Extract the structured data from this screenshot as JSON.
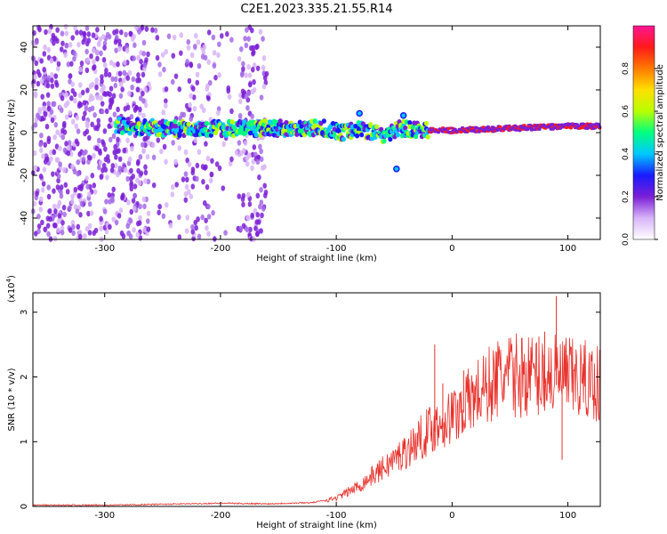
{
  "figure": {
    "title": "C2E1.2023.335.21.55.R14"
  },
  "chart_data": [
    {
      "type": "heatmap",
      "xlabel": "Height of straight line (km)",
      "ylabel": "Frequency (Hz)",
      "xlim": [
        -362,
        128
      ],
      "ylim": [
        -50,
        50
      ],
      "xticks": [
        -300,
        -200,
        -100,
        0,
        100
      ],
      "yticks": [
        -40,
        -20,
        0,
        20,
        40
      ],
      "colorbar": {
        "label": "Normalized spectral amplitude",
        "range": [
          0,
          1
        ],
        "ticks": [
          "0.0",
          "0.2",
          "0.4",
          "0.6",
          "0.8"
        ],
        "colors": [
          "#ffffff",
          "#d8b4f8",
          "#7b1fd6",
          "#1a1aff",
          "#00c8ff",
          "#00ff80",
          "#b8ff00",
          "#ffe000",
          "#ff7a00",
          "#ff1a1a",
          "#ff1493"
        ]
      },
      "signal_band": {
        "center_line": [
          [
            -285,
            3
          ],
          [
            -250,
            2
          ],
          [
            -200,
            2
          ],
          [
            -150,
            2
          ],
          [
            -110,
            2
          ],
          [
            -95,
            0
          ],
          [
            -80,
            2
          ],
          [
            -60,
            -1
          ],
          [
            -45,
            2
          ],
          [
            -30,
            1
          ],
          [
            0,
            1
          ],
          [
            50,
            2
          ],
          [
            100,
            3
          ],
          [
            128,
            3
          ]
        ],
        "outliers": [
          [
            -48,
            -17
          ],
          [
            -80,
            9
          ],
          [
            -42,
            8
          ]
        ]
      },
      "noise_region": {
        "x_range": [
          -362,
          -160
        ]
      }
    },
    {
      "type": "line",
      "xlabel": "Height of straight line (km)",
      "ylabel": "SNR (10 * v/v)",
      "y_exponent_label": "(x10",
      "y_exponent": "4",
      "y_exponent_close": ")",
      "xlim": [
        -362,
        128
      ],
      "ylim": [
        0,
        3.3
      ],
      "xticks": [
        -300,
        -200,
        -100,
        0,
        100
      ],
      "yticks": [
        0,
        1,
        2,
        3
      ],
      "series": [
        {
          "color": "#e8302a",
          "trend": [
            [
              -362,
              0.01
            ],
            [
              -300,
              0.01
            ],
            [
              -260,
              0.02
            ],
            [
              -200,
              0.04
            ],
            [
              -160,
              0.03
            ],
            [
              -120,
              0.05
            ],
            [
              -100,
              0.12
            ],
            [
              -80,
              0.3
            ],
            [
              -60,
              0.55
            ],
            [
              -40,
              0.8
            ],
            [
              -20,
              1.1
            ],
            [
              0,
              1.3
            ],
            [
              20,
              1.6
            ],
            [
              40,
              1.85
            ],
            [
              60,
              1.9
            ],
            [
              80,
              1.9
            ],
            [
              100,
              1.85
            ],
            [
              128,
              1.78
            ]
          ],
          "spikes": [
            [
              -15,
              2.5
            ],
            [
              -8,
              1.9
            ],
            [
              10,
              2.1
            ],
            [
              20,
              1.85
            ],
            [
              55,
              2.35
            ],
            [
              75,
              2.6
            ],
            [
              80,
              2.7
            ],
            [
              90,
              3.25
            ],
            [
              95,
              0.72
            ],
            [
              98,
              2.45
            ]
          ]
        }
      ]
    }
  ]
}
